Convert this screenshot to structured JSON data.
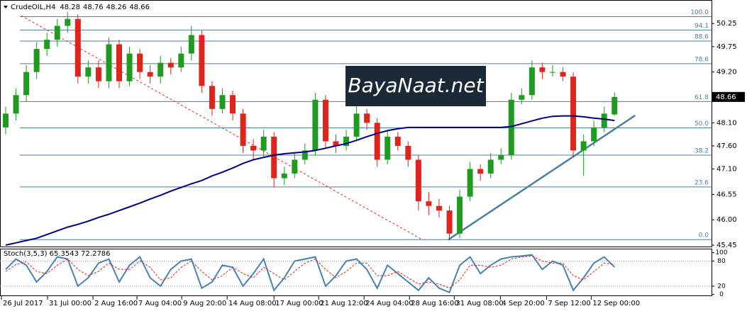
{
  "chart_data": [
    {
      "type": "candlestick",
      "title": "CrudeOIL,H4",
      "x": [
        0,
        1,
        2,
        3,
        4,
        5,
        6,
        7,
        8,
        9,
        10,
        11,
        12,
        13,
        14,
        15,
        16,
        17,
        18,
        19,
        20,
        21,
        22,
        23,
        24,
        25,
        26,
        27,
        28,
        29,
        30,
        31,
        32,
        33,
        34,
        35,
        36,
        37,
        38,
        39,
        40,
        41,
        42,
        43,
        44,
        45,
        46,
        47,
        48,
        49,
        50,
        51,
        52,
        53,
        54,
        55,
        56,
        57,
        58,
        59
      ],
      "open": [
        48.0,
        48.3,
        48.7,
        49.2,
        49.7,
        49.9,
        50.2,
        50.35,
        49.1,
        49.3,
        49.0,
        49.8,
        49.0,
        49.6,
        49.2,
        49.1,
        49.4,
        49.3,
        49.6,
        50.0,
        48.9,
        48.4,
        48.7,
        48.3,
        47.6,
        47.5,
        47.8,
        46.9,
        47.0,
        47.3,
        47.5,
        48.6,
        47.7,
        47.6,
        47.8,
        48.3,
        48.1,
        47.3,
        47.8,
        47.6,
        47.3,
        46.4,
        46.3,
        46.2,
        45.7,
        46.5,
        47.1,
        47.0,
        47.3,
        47.4,
        48.6,
        48.7,
        49.3,
        49.2,
        49.2,
        49.1,
        47.5,
        47.7,
        48.0,
        48.28
      ],
      "high": [
        48.45,
        48.85,
        49.35,
        49.85,
        50.05,
        50.35,
        50.5,
        50.45,
        49.45,
        49.45,
        49.95,
        49.9,
        49.75,
        49.7,
        49.35,
        49.55,
        49.5,
        49.75,
        50.2,
        50.1,
        49.0,
        48.85,
        48.8,
        48.4,
        47.75,
        47.95,
        47.9,
        47.15,
        47.45,
        47.65,
        48.75,
        48.7,
        47.85,
        47.95,
        48.45,
        48.4,
        48.2,
        47.95,
        47.9,
        47.7,
        47.4,
        46.6,
        46.45,
        46.3,
        46.65,
        47.25,
        47.2,
        47.45,
        47.55,
        48.75,
        48.85,
        49.45,
        49.4,
        49.35,
        49.3,
        49.2,
        47.85,
        48.15,
        48.45,
        48.76
      ],
      "low": [
        47.85,
        48.15,
        48.55,
        49.05,
        49.55,
        49.75,
        50.05,
        48.95,
        48.95,
        48.85,
        48.85,
        48.85,
        48.9,
        49.05,
        48.95,
        48.95,
        49.15,
        49.2,
        49.45,
        48.75,
        48.25,
        48.3,
        48.15,
        47.45,
        47.3,
        47.35,
        46.7,
        46.75,
        46.9,
        47.2,
        47.4,
        47.55,
        47.45,
        47.5,
        47.7,
        47.95,
        47.15,
        47.2,
        47.5,
        47.15,
        46.2,
        46.1,
        46.05,
        45.55,
        45.6,
        46.4,
        46.85,
        46.9,
        47.2,
        47.3,
        48.5,
        48.6,
        49.05,
        49.1,
        49.0,
        47.35,
        46.95,
        47.6,
        47.9,
        48.26
      ],
      "close": [
        48.3,
        48.7,
        49.2,
        49.7,
        49.9,
        50.2,
        50.35,
        49.1,
        49.3,
        49.0,
        49.8,
        49.0,
        49.6,
        49.2,
        49.1,
        49.4,
        49.3,
        49.6,
        50.0,
        48.9,
        48.4,
        48.7,
        48.3,
        47.6,
        47.5,
        47.8,
        46.9,
        47.0,
        47.3,
        47.5,
        48.6,
        47.7,
        47.6,
        47.8,
        48.3,
        48.1,
        47.3,
        47.8,
        47.6,
        47.3,
        46.4,
        46.3,
        46.2,
        45.7,
        46.5,
        47.1,
        47.0,
        47.3,
        47.4,
        48.6,
        48.7,
        49.3,
        49.2,
        49.2,
        49.1,
        47.5,
        47.7,
        48.0,
        48.3,
        48.66
      ],
      "up_color": "#1f9b1f",
      "down_color": "#e0241c",
      "ma": {
        "color": "#00008b",
        "values": [
          45.45,
          45.5,
          45.55,
          45.6,
          45.68,
          45.76,
          45.84,
          45.9,
          45.97,
          46.05,
          46.12,
          46.2,
          46.28,
          46.36,
          46.45,
          46.53,
          46.62,
          46.7,
          46.78,
          46.85,
          46.95,
          47.03,
          47.12,
          47.22,
          47.3,
          47.35,
          47.4,
          47.43,
          47.45,
          47.47,
          47.5,
          47.55,
          47.6,
          47.65,
          47.72,
          47.8,
          47.87,
          47.93,
          47.97,
          48.0,
          48.0,
          48.0,
          48.0,
          48.0,
          48.0,
          48.0,
          48.0,
          48.0,
          48.0,
          48.02,
          48.08,
          48.14,
          48.2,
          48.24,
          48.25,
          48.25,
          48.23,
          48.2,
          48.18,
          48.15
        ]
      },
      "fib_color": "#4a7f9e",
      "fib_levels": [
        {
          "value": 50.4,
          "label": "100.0"
        },
        {
          "value": 50.11,
          "label": "94.1"
        },
        {
          "value": 49.87,
          "label": "88.6"
        },
        {
          "value": 49.38,
          "label": "78.6"
        },
        {
          "value": 48.56,
          "label": "61.8"
        },
        {
          "value": 47.99,
          "label": "50.0"
        },
        {
          "value": 47.4,
          "label": "38.2"
        },
        {
          "value": 46.71,
          "label": "23.6"
        },
        {
          "value": 45.57,
          "label": "0.0"
        }
      ],
      "trendlines": [
        {
          "color": "#e0241c",
          "dashed": true,
          "points": [
            [
              1.51,
              50.42
            ],
            [
              40.37,
              45.57
            ]
          ]
        },
        {
          "color": "#4a7f9e",
          "dashed": false,
          "points": [
            [
              42.9,
              45.57
            ],
            [
              61.0,
              48.26
            ]
          ]
        }
      ],
      "xlim": [
        -0.55,
        68.4
      ],
      "ylim": [
        45.42,
        50.76
      ],
      "yticks": [
        50.25,
        49.75,
        {
          "value": 49.2,
          "label": "49.20"
        },
        {
          "value": 48.1,
          "label": "48.10"
        },
        {
          "value": 47.6,
          "label": "47.60"
        },
        {
          "value": 47.1,
          "label": "47.10"
        },
        46.55,
        {
          "value": 46.0,
          "label": "46.00"
        },
        45.45
      ],
      "xticks": [
        {
          "value": -0.41,
          "label": "26 Jul 2017"
        },
        {
          "value": 4.06,
          "label": "31 Jul 00:00"
        },
        {
          "value": 8.46,
          "label": "2 Aug 16:00"
        },
        {
          "value": 12.72,
          "label": "7 Aug 04:00"
        },
        {
          "value": 17.06,
          "label": "9 Aug 20:00"
        },
        {
          "value": 21.46,
          "label": "14 Aug 08:00"
        },
        {
          "value": 26.0,
          "label": "17 Aug 00:00"
        },
        {
          "value": 30.33,
          "label": "21 Aug 12:00"
        },
        {
          "value": 34.73,
          "label": "24 Aug 04:00"
        },
        {
          "value": 39.13,
          "label": "28 Aug 16:00"
        },
        {
          "value": 43.47,
          "label": "31 Aug 08:00"
        },
        {
          "value": 47.94,
          "label": "4 Sep 20:00"
        },
        {
          "value": 52.41,
          "label": "7 Sep 12:00"
        },
        {
          "value": 56.74,
          "label": "12 Sep 00:00"
        }
      ]
    },
    {
      "type": "stochastic",
      "title": "Stoch(3,5,3) 65.3543 72.2786",
      "series": [
        {
          "color": "#4682b4",
          "dashed": false,
          "values": [
            60,
            85,
            70,
            30,
            55,
            90,
            85,
            20,
            40,
            75,
            85,
            30,
            70,
            90,
            40,
            20,
            60,
            80,
            85,
            15,
            30,
            70,
            65,
            20,
            50,
            85,
            10,
            40,
            80,
            85,
            90,
            20,
            45,
            80,
            85,
            60,
            15,
            70,
            50,
            30,
            10,
            40,
            15,
            5,
            70,
            90,
            50,
            70,
            85,
            90,
            92,
            95,
            60,
            80,
            70,
            10,
            40,
            75,
            90,
            65.35
          ]
        },
        {
          "color": "#e0241c",
          "dashed": true,
          "values": [
            55,
            72,
            78,
            55,
            50,
            70,
            85,
            60,
            45,
            55,
            75,
            60,
            60,
            80,
            65,
            35,
            40,
            65,
            80,
            55,
            35,
            45,
            65,
            50,
            40,
            65,
            50,
            35,
            55,
            75,
            85,
            60,
            40,
            55,
            75,
            75,
            45,
            45,
            55,
            40,
            25,
            30,
            25,
            15,
            35,
            70,
            70,
            65,
            70,
            85,
            90,
            92,
            80,
            75,
            75,
            45,
            35,
            55,
            75,
            72.28
          ]
        }
      ],
      "ylim": [
        -4,
        108
      ],
      "yticks": [
        100,
        80,
        20,
        0
      ],
      "levels": [
        80,
        20
      ]
    }
  ],
  "watermark": "BayaNaat.net"
}
